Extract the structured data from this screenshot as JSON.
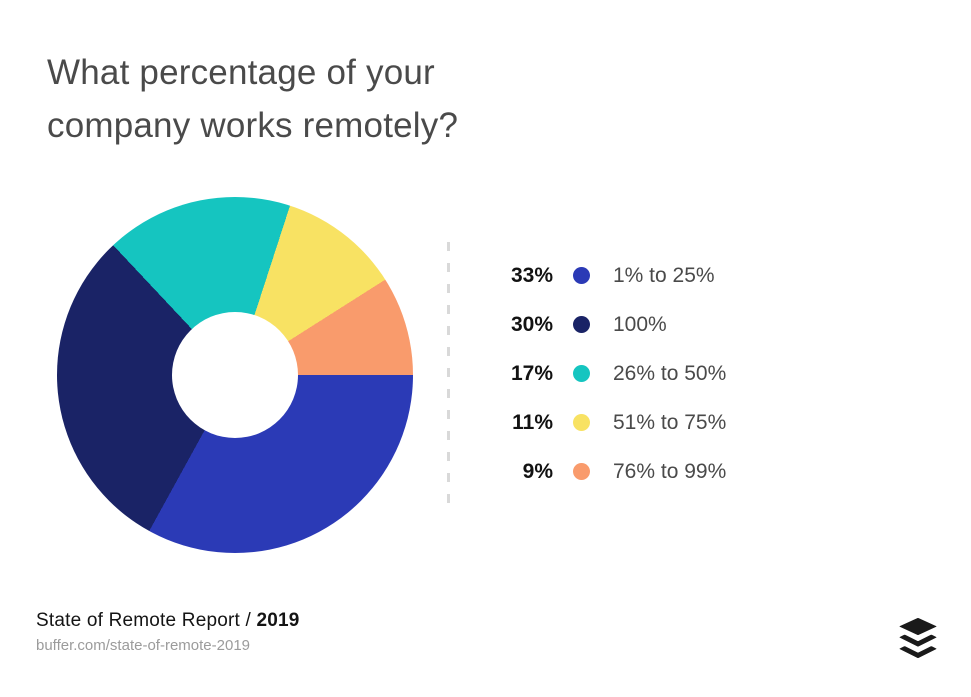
{
  "title": {
    "line1": "What percentage of your",
    "line2": "company works remotely?"
  },
  "chart_data": {
    "type": "pie",
    "donut": true,
    "hole_ratio": 0.35,
    "start_angle": "3 o'clock, clockwise",
    "title": "What percentage of your company works remotely?",
    "legend_position": "right",
    "slices": [
      {
        "label": "1% to 25%",
        "value": 33,
        "value_label": "33%",
        "color": "#2b3ab6"
      },
      {
        "label": "100%",
        "value": 30,
        "value_label": "30%",
        "color": "#1a2366"
      },
      {
        "label": "26% to 50%",
        "value": 17,
        "value_label": "17%",
        "color": "#15c5c0"
      },
      {
        "label": "51% to 75%",
        "value": 11,
        "value_label": "11%",
        "color": "#f8e263"
      },
      {
        "label": "76% to 99%",
        "value": 9,
        "value_label": "9%",
        "color": "#f99b6c"
      }
    ]
  },
  "footer": {
    "report": "State of Remote Report / ",
    "year": "2019",
    "url": "buffer.com/state-of-remote-2019"
  },
  "logo": {
    "name": "buffer-logo",
    "color": "#1a1a1a"
  }
}
